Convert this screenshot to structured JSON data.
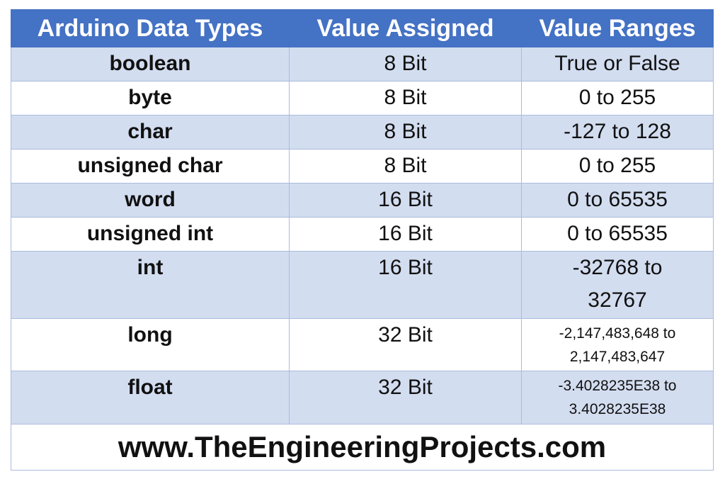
{
  "colors": {
    "header": "#4472c4",
    "row_alt": "#d3ddf0",
    "border": "#a9bbdd"
  },
  "headers": [
    "Arduino Data Types",
    "Value Assigned",
    "Value Ranges"
  ],
  "rows": [
    {
      "type": "boolean",
      "size": "8 Bit",
      "range": [
        "True or False"
      ]
    },
    {
      "type": "byte",
      "size": "8 Bit",
      "range": [
        "0 to 255"
      ]
    },
    {
      "type": "char",
      "size": "8 Bit",
      "range": [
        "-127 to 128"
      ]
    },
    {
      "type": "unsigned char",
      "size": "8 Bit",
      "range": [
        "0 to 255"
      ]
    },
    {
      "type": "word",
      "size": "16 Bit",
      "range": [
        "0 to 65535"
      ]
    },
    {
      "type": "unsigned int",
      "size": "16 Bit",
      "range": [
        "0 to 65535"
      ]
    },
    {
      "type": "int",
      "size": "16 Bit",
      "range": [
        "-32768 to",
        "32767"
      ]
    },
    {
      "type": "long",
      "size": "32 Bit",
      "range": [
        "-2,147,483,648 to",
        "2,147,483,647"
      ],
      "small": true
    },
    {
      "type": "float",
      "size": "32 Bit",
      "range": [
        "-3.4028235E38 to",
        "3.4028235E38"
      ],
      "small": true
    }
  ],
  "footer": "www.TheEngineeringProjects.com"
}
